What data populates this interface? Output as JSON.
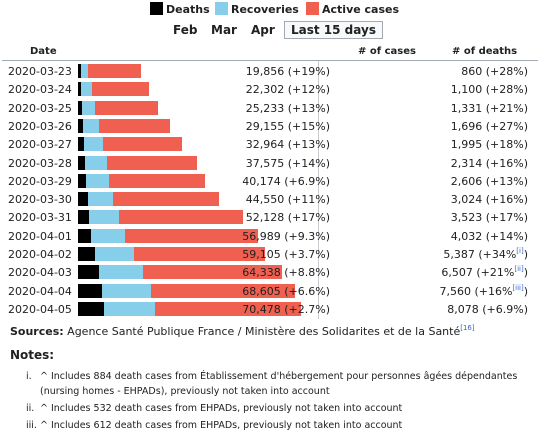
{
  "legend": {
    "deaths": "Deaths",
    "recoveries": "Recoveries",
    "active": "Active cases",
    "colors": {
      "deaths": "#000000",
      "recoveries": "#87ceeb",
      "active": "#f06050"
    }
  },
  "tabs": [
    {
      "label": "Feb",
      "active": false
    },
    {
      "label": "Mar",
      "active": false
    },
    {
      "label": "Apr",
      "active": false
    },
    {
      "label": "Last 15 days",
      "active": true
    }
  ],
  "table": {
    "col_date": "Date",
    "col_cases": "# of cases",
    "col_deaths": "# of deaths"
  },
  "chart_data": {
    "type": "bar",
    "stacked": true,
    "orientation": "horizontal",
    "categories": [
      "2020-03-23",
      "2020-03-24",
      "2020-03-25",
      "2020-03-26",
      "2020-03-27",
      "2020-03-28",
      "2020-03-29",
      "2020-03-30",
      "2020-03-31",
      "2020-04-01",
      "2020-04-02",
      "2020-04-03",
      "2020-04-04",
      "2020-04-05"
    ],
    "series": [
      {
        "name": "Deaths",
        "values": [
          860,
          1100,
          1331,
          1696,
          1995,
          2314,
          2606,
          3024,
          3523,
          4032,
          5387,
          6507,
          7560,
          8078
        ]
      },
      {
        "name": "Recoveries",
        "values": [
          2200,
          3300,
          4000,
          5000,
          6000,
          6700,
          7200,
          7900,
          9400,
          10900,
          12400,
          14000,
          15400,
          16200
        ]
      },
      {
        "name": "Active cases",
        "values": [
          16796,
          17902,
          19902,
          22459,
          24969,
          28561,
          30368,
          33626,
          39205,
          42057,
          41318,
          43831,
          45645,
          46200
        ]
      }
    ],
    "cases_labels": [
      "19,856 (+19%)",
      "22,302 (+12%)",
      "25,233 (+13%)",
      "29,155 (+15%)",
      "32,964 (+13%)",
      "37,575 (+14%)",
      "40,174 (+6.9%)",
      "44,550 (+11%)",
      "52,128 (+17%)",
      "56,989 (+9.3%)",
      "59,105 (+3.7%)",
      "64,338 (+8.8%)",
      "68,605 (+6.6%)",
      "70,478 (+2.7%)"
    ],
    "deaths_labels": [
      "860 (+28%)",
      "1,100 (+28%)",
      "1,331 (+21%)",
      "1,696 (+27%)",
      "1,995 (+18%)",
      "2,314 (+16%)",
      "2,606 (+13%)",
      "3,024 (+16%)",
      "3,523 (+17%)",
      "4,032 (+14%)",
      "5,387 (+34%",
      "6,507 (+21%",
      "7,560 (+16%",
      "8,078 (+6.9%)"
    ],
    "deaths_refs": [
      "",
      "",
      "",
      "",
      "",
      "",
      "",
      "",
      "",
      "",
      "[i]",
      "[ii]",
      "[iii]",
      ""
    ],
    "deaths_closing": [
      "",
      "",
      "",
      "",
      "",
      "",
      "",
      "",
      "",
      "",
      ")",
      ")",
      ")",
      ""
    ],
    "xlim": [
      0,
      72000
    ]
  },
  "sources": {
    "label": "Sources:",
    "text": " Agence Santé Publique France / Ministère des Solidarites et de la Santé",
    "ref": "[16]"
  },
  "notes": {
    "title": "Notes:",
    "items": [
      {
        "num": "i.",
        "text": "^ Includes 884 death cases from Établissement d'hébergement pour personnes âgées dépendantes (nursing homes - EHPADs), previously not taken into account"
      },
      {
        "num": "ii.",
        "text": "^ Includes 532 death cases from EHPADs, previously not taken into account"
      },
      {
        "num": "iii.",
        "text": "^ Includes 612 death cases from EHPADs, previously not taken into account"
      }
    ]
  }
}
